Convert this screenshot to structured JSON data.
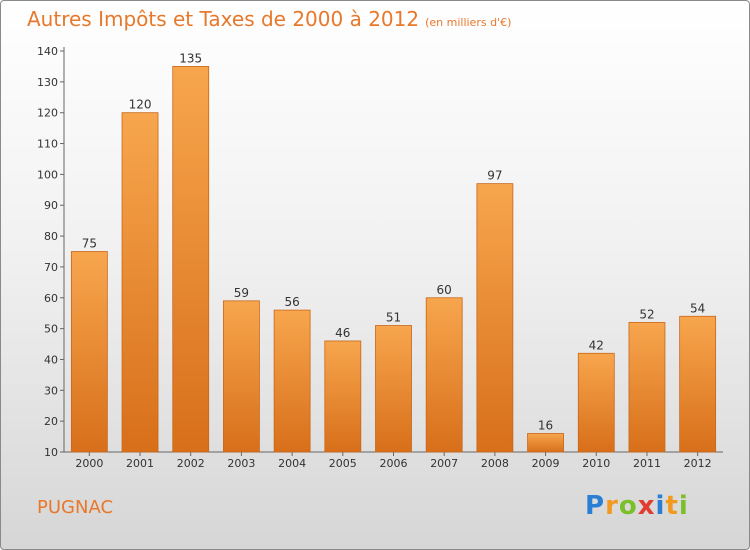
{
  "title": "Autres Impôts et Taxes de 2000 à 2012",
  "unit_label": "(en milliers d'€)",
  "commune": "PUGNAC",
  "logo": {
    "letters": [
      "P",
      "r",
      "o",
      "x",
      "i",
      "t",
      "i"
    ],
    "colors": [
      "#2a7fd4",
      "#f29a1f",
      "#7bbf2a",
      "#e23b2f",
      "#2a7fd4",
      "#f29a1f",
      "#7bbf2a"
    ]
  },
  "colors": {
    "bar_top": "#f7a64e",
    "bar_bottom": "#d86f1a",
    "bar_stroke": "#c8661a",
    "text_orange": "#e8782b"
  },
  "chart_data": {
    "type": "bar",
    "categories": [
      "2000",
      "2001",
      "2002",
      "2003",
      "2004",
      "2005",
      "2006",
      "2007",
      "2008",
      "2009",
      "2010",
      "2011",
      "2012"
    ],
    "values": [
      75,
      120,
      135,
      59,
      56,
      46,
      51,
      60,
      97,
      16,
      42,
      52,
      54
    ],
    "title": "Autres Impôts et Taxes de 2000 à 2012",
    "xlabel": "",
    "ylabel": "",
    "ylim": [
      10,
      140
    ],
    "yticks": [
      10,
      20,
      30,
      40,
      50,
      60,
      70,
      80,
      90,
      100,
      110,
      120,
      130,
      140
    ],
    "grid": false,
    "data_labels": true
  }
}
